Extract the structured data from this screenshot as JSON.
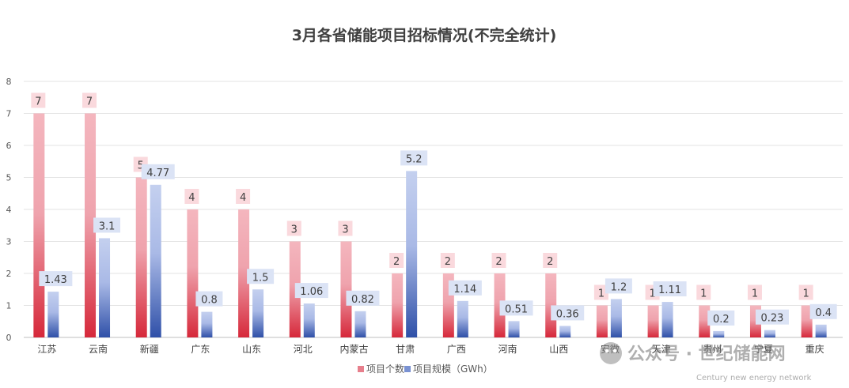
{
  "chart_data": {
    "type": "bar",
    "title": "3月各省储能项目招标情况(不完全统计)",
    "categories": [
      "江苏",
      "云南",
      "新疆",
      "广东",
      "山东",
      "河北",
      "内蒙古",
      "甘肃",
      "广西",
      "河南",
      "山西",
      "安徽",
      "天津",
      "贵州",
      "宁夏",
      "重庆"
    ],
    "series": [
      {
        "name": "项目个数",
        "values": [
          7,
          7,
          5,
          4,
          4,
          3,
          3,
          2,
          2,
          2,
          2,
          1,
          1,
          1,
          1,
          1
        ],
        "color_top": "#f4b6be",
        "color_bottom": "#d6283a"
      },
      {
        "name": "项目规模（GWh）",
        "values": [
          1.43,
          3.1,
          4.77,
          0.8,
          1.5,
          1.06,
          0.82,
          5.2,
          1.14,
          0.51,
          0.36,
          1.2,
          1.11,
          0.2,
          0.23,
          0.4
        ],
        "color_top": "#c4d0ef",
        "color_bottom": "#2f50a8"
      }
    ],
    "ylim": [
      0,
      8
    ],
    "yticks": [
      0,
      1,
      2,
      3,
      4,
      5,
      6,
      7,
      8
    ],
    "grid": true,
    "legend": "bottom-center",
    "xlabel": "",
    "ylabel": ""
  },
  "watermark": {
    "text": "公众号 · 世纪储能网",
    "subtext": "Century new energy network"
  }
}
